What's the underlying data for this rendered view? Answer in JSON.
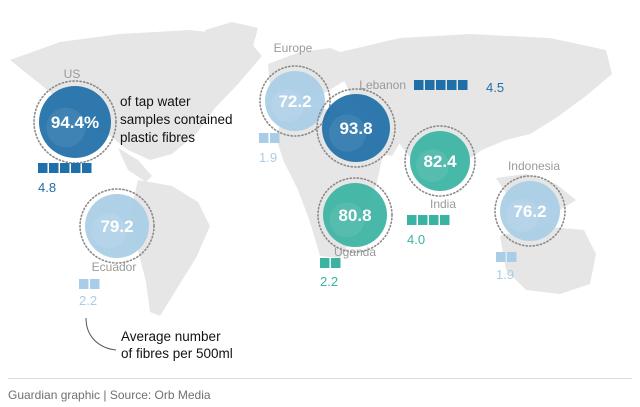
{
  "colors": {
    "map": "#e6e6e6",
    "label_grey": "#9a9a9a",
    "text_dark": "#121212",
    "us": "#1f6fa8",
    "lebanon": "#1f6fa8",
    "europe": "#a9cde6",
    "ecuador": "#a9cde6",
    "indonesia": "#a9cde6",
    "uganda": "#3ab3a2",
    "india": "#3ab3a2",
    "dotted": "#8a8a8a"
  },
  "chart_data": {
    "type": "bubble-map",
    "note_percent": "of tap water samples contained plastic fibres",
    "note_fibres": "Average number of fibres per 500ml",
    "countries": [
      {
        "id": "us",
        "name": "US",
        "percent_label": "94.4%",
        "percent": 94.4,
        "fibres": 4.8,
        "bubble": "us",
        "blocks": "us"
      },
      {
        "id": "europe",
        "name": "Europe",
        "percent_label": "72.2",
        "percent": 72.2,
        "fibres": 1.9,
        "bubble": "europe",
        "blocks": "europe"
      },
      {
        "id": "lebanon",
        "name": "Lebanon",
        "percent_label": "93.8",
        "percent": 93.8,
        "fibres": 4.5,
        "bubble": "lebanon",
        "blocks": "lebanon"
      },
      {
        "id": "india",
        "name": "India",
        "percent_label": "82.4",
        "percent": 82.4,
        "fibres": 4.0,
        "bubble": "india",
        "blocks": "india"
      },
      {
        "id": "uganda",
        "name": "Uganda",
        "percent_label": "80.8",
        "percent": 80.8,
        "fibres": 2.2,
        "bubble": "uganda",
        "blocks": "uganda"
      },
      {
        "id": "indonesia",
        "name": "Indonesia",
        "percent_label": "76.2",
        "percent": 76.2,
        "fibres": 1.9,
        "bubble": "indonesia",
        "blocks": "indonesia"
      },
      {
        "id": "ecuador",
        "name": "Ecuador",
        "percent_label": "79.2",
        "percent": 79.2,
        "fibres": 2.2,
        "bubble": "ecuador",
        "blocks": "ecuador"
      }
    ]
  },
  "annotations": {
    "percent_lines": [
      "of tap water",
      "samples contained",
      "plastic fibres"
    ],
    "fibres_lines": [
      "Average number",
      "of fibres per 500ml"
    ]
  },
  "footer": {
    "source": "Guardian graphic | Source: Orb Media"
  }
}
